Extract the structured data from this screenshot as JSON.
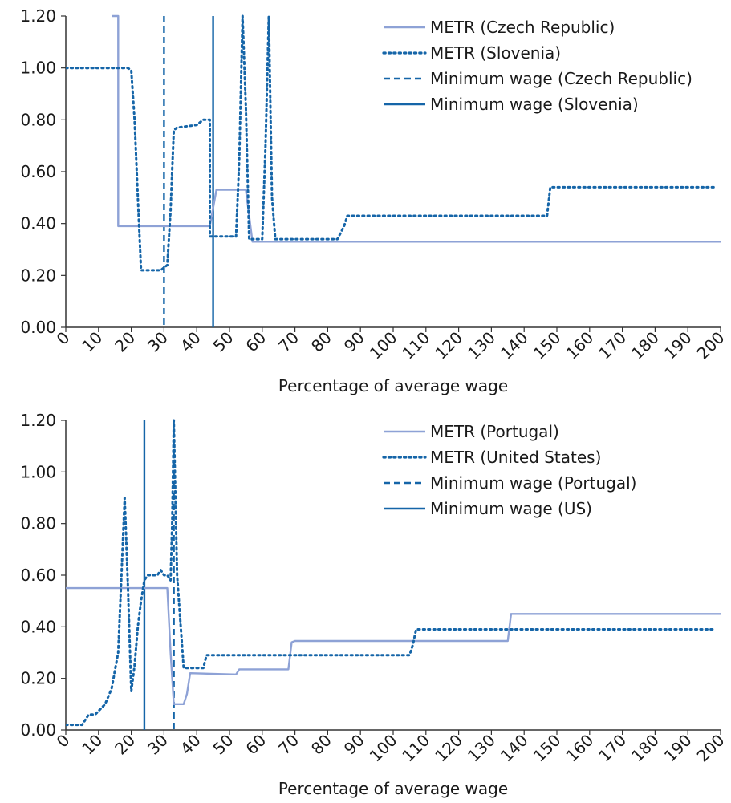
{
  "colors": {
    "metr_solid": "#8ea2d6",
    "dotted": "#1565a8",
    "minwage_dashed": "#1565a8",
    "minwage_solid": "#1565a8",
    "axis": "#333333"
  },
  "chart_data": [
    {
      "type": "line",
      "title": "",
      "xlabel": "Percentage of average wage",
      "ylabel": "",
      "xlim": [
        0,
        200
      ],
      "ylim": [
        0,
        1.2
      ],
      "x_ticks": [
        "0",
        "10",
        "20",
        "30",
        "40",
        "50",
        "60",
        "70",
        "80",
        "90",
        "100",
        "110",
        "120",
        "130",
        "140",
        "150",
        "160",
        "170",
        "180",
        "190",
        "200"
      ],
      "y_ticks": [
        "0.00",
        "0.20",
        "0.40",
        "0.60",
        "0.80",
        "1.00",
        "1.20"
      ],
      "grid": false,
      "legend_position": "top-right",
      "series": [
        {
          "name": "METR (Czech Republic)",
          "style": "solid",
          "x": [
            14,
            14,
            16,
            16,
            44,
            45,
            46,
            55,
            57,
            200
          ],
          "y": [
            1.2,
            1.2,
            1.2,
            0.39,
            0.39,
            0.46,
            0.53,
            0.53,
            0.33,
            0.33
          ]
        },
        {
          "name": "METR (Slovenia)",
          "style": "dotted",
          "x": [
            0,
            19,
            20,
            21,
            22,
            23,
            29,
            31,
            32,
            33,
            34,
            40,
            42,
            44,
            44,
            45,
            52,
            53,
            54,
            55,
            56,
            57,
            60,
            61,
            62,
            63,
            64,
            83,
            85,
            86,
            147,
            148,
            198
          ],
          "y": [
            1.0,
            1.0,
            0.99,
            0.8,
            0.5,
            0.22,
            0.22,
            0.24,
            0.45,
            0.76,
            0.77,
            0.78,
            0.8,
            0.8,
            0.35,
            0.35,
            0.35,
            0.65,
            1.2,
            0.85,
            0.34,
            0.34,
            0.34,
            0.7,
            1.2,
            0.5,
            0.34,
            0.34,
            0.39,
            0.43,
            0.43,
            0.54,
            0.54
          ]
        }
      ],
      "reference_lines": [
        {
          "name": "Minimum wage (Czech Republic)",
          "style": "dashed",
          "x": 30
        },
        {
          "name": "Minimum wage (Slovenia)",
          "style": "solid",
          "x": 45
        }
      ]
    },
    {
      "type": "line",
      "title": "",
      "xlabel": "Percentage of average wage",
      "ylabel": "",
      "xlim": [
        0,
        200
      ],
      "ylim": [
        0,
        1.2
      ],
      "x_ticks": [
        "0",
        "10",
        "20",
        "30",
        "40",
        "50",
        "60",
        "70",
        "80",
        "90",
        "100",
        "110",
        "120",
        "130",
        "140",
        "150",
        "160",
        "170",
        "180",
        "190",
        "200"
      ],
      "y_ticks": [
        "0.00",
        "0.20",
        "0.40",
        "0.60",
        "0.80",
        "1.00",
        "1.20"
      ],
      "grid": false,
      "legend_position": "top-right",
      "series": [
        {
          "name": "METR (Portugal)",
          "style": "solid",
          "x": [
            0,
            31,
            32,
            33,
            34,
            36,
            37,
            38,
            52,
            53,
            54,
            68,
            69,
            70,
            106,
            107,
            135,
            136,
            200
          ],
          "y": [
            0.55,
            0.55,
            0.3,
            0.1,
            0.1,
            0.1,
            0.14,
            0.22,
            0.215,
            0.235,
            0.235,
            0.235,
            0.34,
            0.345,
            0.345,
            0.345,
            0.345,
            0.45,
            0.45
          ]
        },
        {
          "name": "METR (United States)",
          "style": "dotted",
          "x": [
            0,
            5,
            7,
            9,
            12,
            14,
            16,
            17,
            18,
            19,
            20,
            21,
            22,
            23,
            24,
            25,
            26,
            27,
            28,
            29,
            30,
            31,
            32,
            32.5,
            33,
            34,
            36,
            40,
            42,
            43,
            45,
            60,
            105,
            106,
            107,
            150,
            198
          ],
          "y": [
            0.02,
            0.02,
            0.06,
            0.06,
            0.1,
            0.16,
            0.3,
            0.6,
            0.9,
            0.55,
            0.15,
            0.25,
            0.4,
            0.5,
            0.58,
            0.6,
            0.6,
            0.6,
            0.6,
            0.62,
            0.6,
            0.6,
            0.58,
            0.8,
            1.2,
            0.6,
            0.24,
            0.24,
            0.24,
            0.29,
            0.29,
            0.29,
            0.29,
            0.33,
            0.39,
            0.39,
            0.39
          ]
        }
      ],
      "reference_lines": [
        {
          "name": "Minimum wage (Portugal)",
          "style": "dashed",
          "x": 33
        },
        {
          "name": "Minimum wage (US)",
          "style": "solid",
          "x": 24
        }
      ]
    }
  ]
}
